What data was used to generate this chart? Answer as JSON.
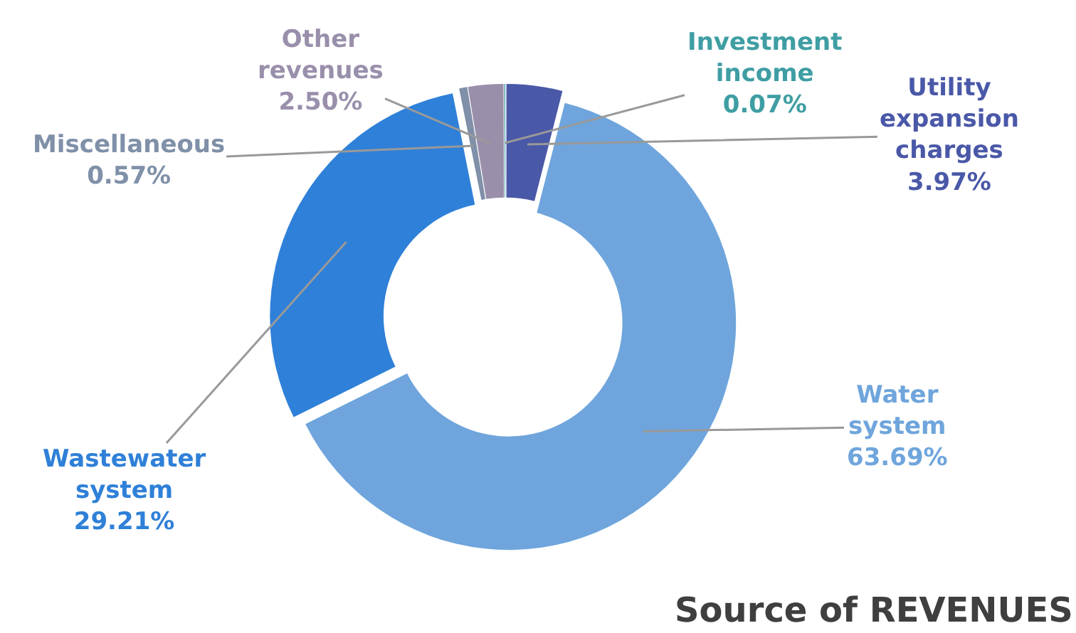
{
  "chart_data": {
    "type": "donut",
    "title": "Source of REVENUES",
    "categories": [
      "Utility expansion charges",
      "Water system",
      "Wastewater system",
      "Miscellaneous",
      "Other revenues",
      "Investment income"
    ],
    "values": [
      3.97,
      63.69,
      29.21,
      0.57,
      2.5,
      0.07
    ],
    "value_labels": [
      "3.97%",
      "63.69%",
      "29.21%",
      "0.57%",
      "2.50%",
      "0.07%"
    ],
    "colors": [
      "#4a58a8",
      "#6fa5dc",
      "#2f80d8",
      "#7f90a8",
      "#9a8fab",
      "#3f9ea3"
    ],
    "legend": false
  }
}
